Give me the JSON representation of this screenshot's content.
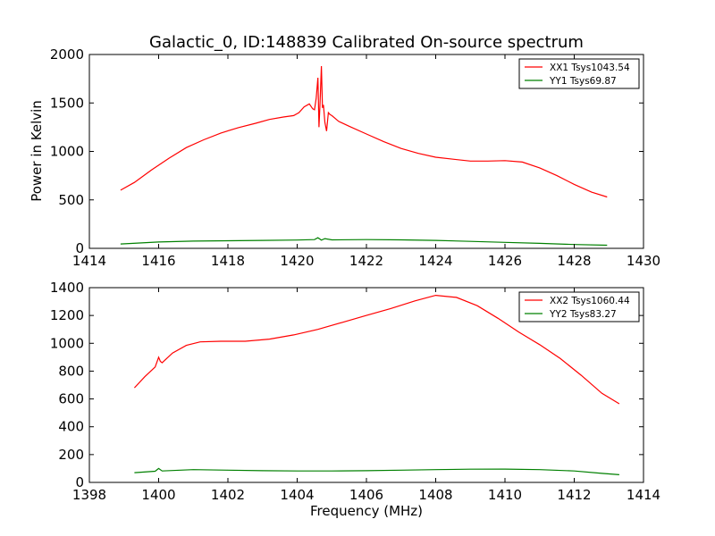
{
  "chart_data": [
    {
      "type": "line",
      "title": "Galactic_0, ID:148839 Calibrated On-source spectrum",
      "ylabel": "Power in Kelvin",
      "xlabel": "",
      "xlim": [
        1414,
        1430
      ],
      "ylim": [
        0,
        2000
      ],
      "xticks": [
        "1414",
        "1416",
        "1418",
        "1420",
        "1422",
        "1424",
        "1426",
        "1428",
        "1430"
      ],
      "yticks": [
        "0",
        "500",
        "1000",
        "1500",
        "2000"
      ],
      "legend": "top-right",
      "series": [
        {
          "name": "XX1 Tsys1043.54",
          "color": "#ff0000",
          "x": [
            1414.9,
            1415.3,
            1415.8,
            1416.3,
            1416.8,
            1417.3,
            1417.8,
            1418.3,
            1418.8,
            1419.2,
            1419.6,
            1419.9,
            1420.05,
            1420.2,
            1420.35,
            1420.45,
            1420.5,
            1420.55,
            1420.6,
            1420.63,
            1420.66,
            1420.7,
            1420.73,
            1420.76,
            1420.8,
            1420.85,
            1420.9,
            1420.95,
            1421.0,
            1421.2,
            1421.5,
            1422.0,
            1422.5,
            1423.0,
            1423.5,
            1424.0,
            1424.5,
            1425.0,
            1425.5,
            1426.0,
            1426.5,
            1427.0,
            1427.5,
            1428.0,
            1428.5,
            1428.95
          ],
          "y": [
            600,
            680,
            810,
            930,
            1040,
            1120,
            1190,
            1245,
            1290,
            1330,
            1355,
            1370,
            1400,
            1460,
            1490,
            1440,
            1430,
            1550,
            1760,
            1250,
            1500,
            1880,
            1450,
            1480,
            1300,
            1210,
            1400,
            1380,
            1370,
            1310,
            1260,
            1180,
            1100,
            1030,
            980,
            940,
            920,
            900,
            900,
            905,
            890,
            830,
            750,
            660,
            580,
            530
          ]
        },
        {
          "name": "YY1 Tsys69.87",
          "color": "#008000",
          "x": [
            1414.9,
            1416.0,
            1417.0,
            1418.0,
            1419.0,
            1420.0,
            1420.5,
            1420.6,
            1420.7,
            1420.8,
            1421.0,
            1422.0,
            1423.0,
            1424.0,
            1425.0,
            1426.0,
            1427.0,
            1428.0,
            1428.95
          ],
          "y": [
            45,
            65,
            75,
            78,
            82,
            86,
            90,
            110,
            85,
            100,
            88,
            90,
            88,
            82,
            72,
            62,
            52,
            40,
            32
          ]
        }
      ]
    },
    {
      "type": "line",
      "title": "",
      "ylabel": "",
      "xlabel": "Frequency (MHz)",
      "xlim": [
        1398,
        1414
      ],
      "ylim": [
        0,
        1400
      ],
      "xticks": [
        "1398",
        "1400",
        "1402",
        "1404",
        "1406",
        "1408",
        "1410",
        "1412",
        "1414"
      ],
      "yticks": [
        "0",
        "200",
        "400",
        "600",
        "800",
        "1000",
        "1200",
        "1400"
      ],
      "legend": "top-right",
      "series": [
        {
          "name": "XX2 Tsys1060.44",
          "color": "#ff0000",
          "x": [
            1399.3,
            1399.6,
            1399.9,
            1400.0,
            1400.05,
            1400.1,
            1400.4,
            1400.8,
            1401.2,
            1401.8,
            1402.5,
            1403.2,
            1403.9,
            1404.6,
            1405.3,
            1406.0,
            1406.7,
            1407.4,
            1408.0,
            1408.6,
            1409.2,
            1409.8,
            1410.4,
            1411.0,
            1411.6,
            1412.2,
            1412.8,
            1413.3
          ],
          "y": [
            680,
            760,
            830,
            900,
            870,
            860,
            930,
            985,
            1010,
            1015,
            1015,
            1030,
            1060,
            1100,
            1150,
            1200,
            1250,
            1305,
            1345,
            1330,
            1270,
            1180,
            1080,
            990,
            890,
            770,
            640,
            565
          ]
        },
        {
          "name": "YY2 Tsys83.27",
          "color": "#008000",
          "x": [
            1399.3,
            1399.9,
            1400.0,
            1400.1,
            1401.0,
            1402.0,
            1403.0,
            1404.0,
            1405.0,
            1406.0,
            1407.0,
            1408.0,
            1409.0,
            1410.0,
            1411.0,
            1412.0,
            1412.8,
            1413.3
          ],
          "y": [
            70,
            80,
            100,
            82,
            92,
            88,
            84,
            82,
            82,
            84,
            88,
            92,
            95,
            96,
            92,
            82,
            65,
            55
          ]
        }
      ]
    }
  ]
}
